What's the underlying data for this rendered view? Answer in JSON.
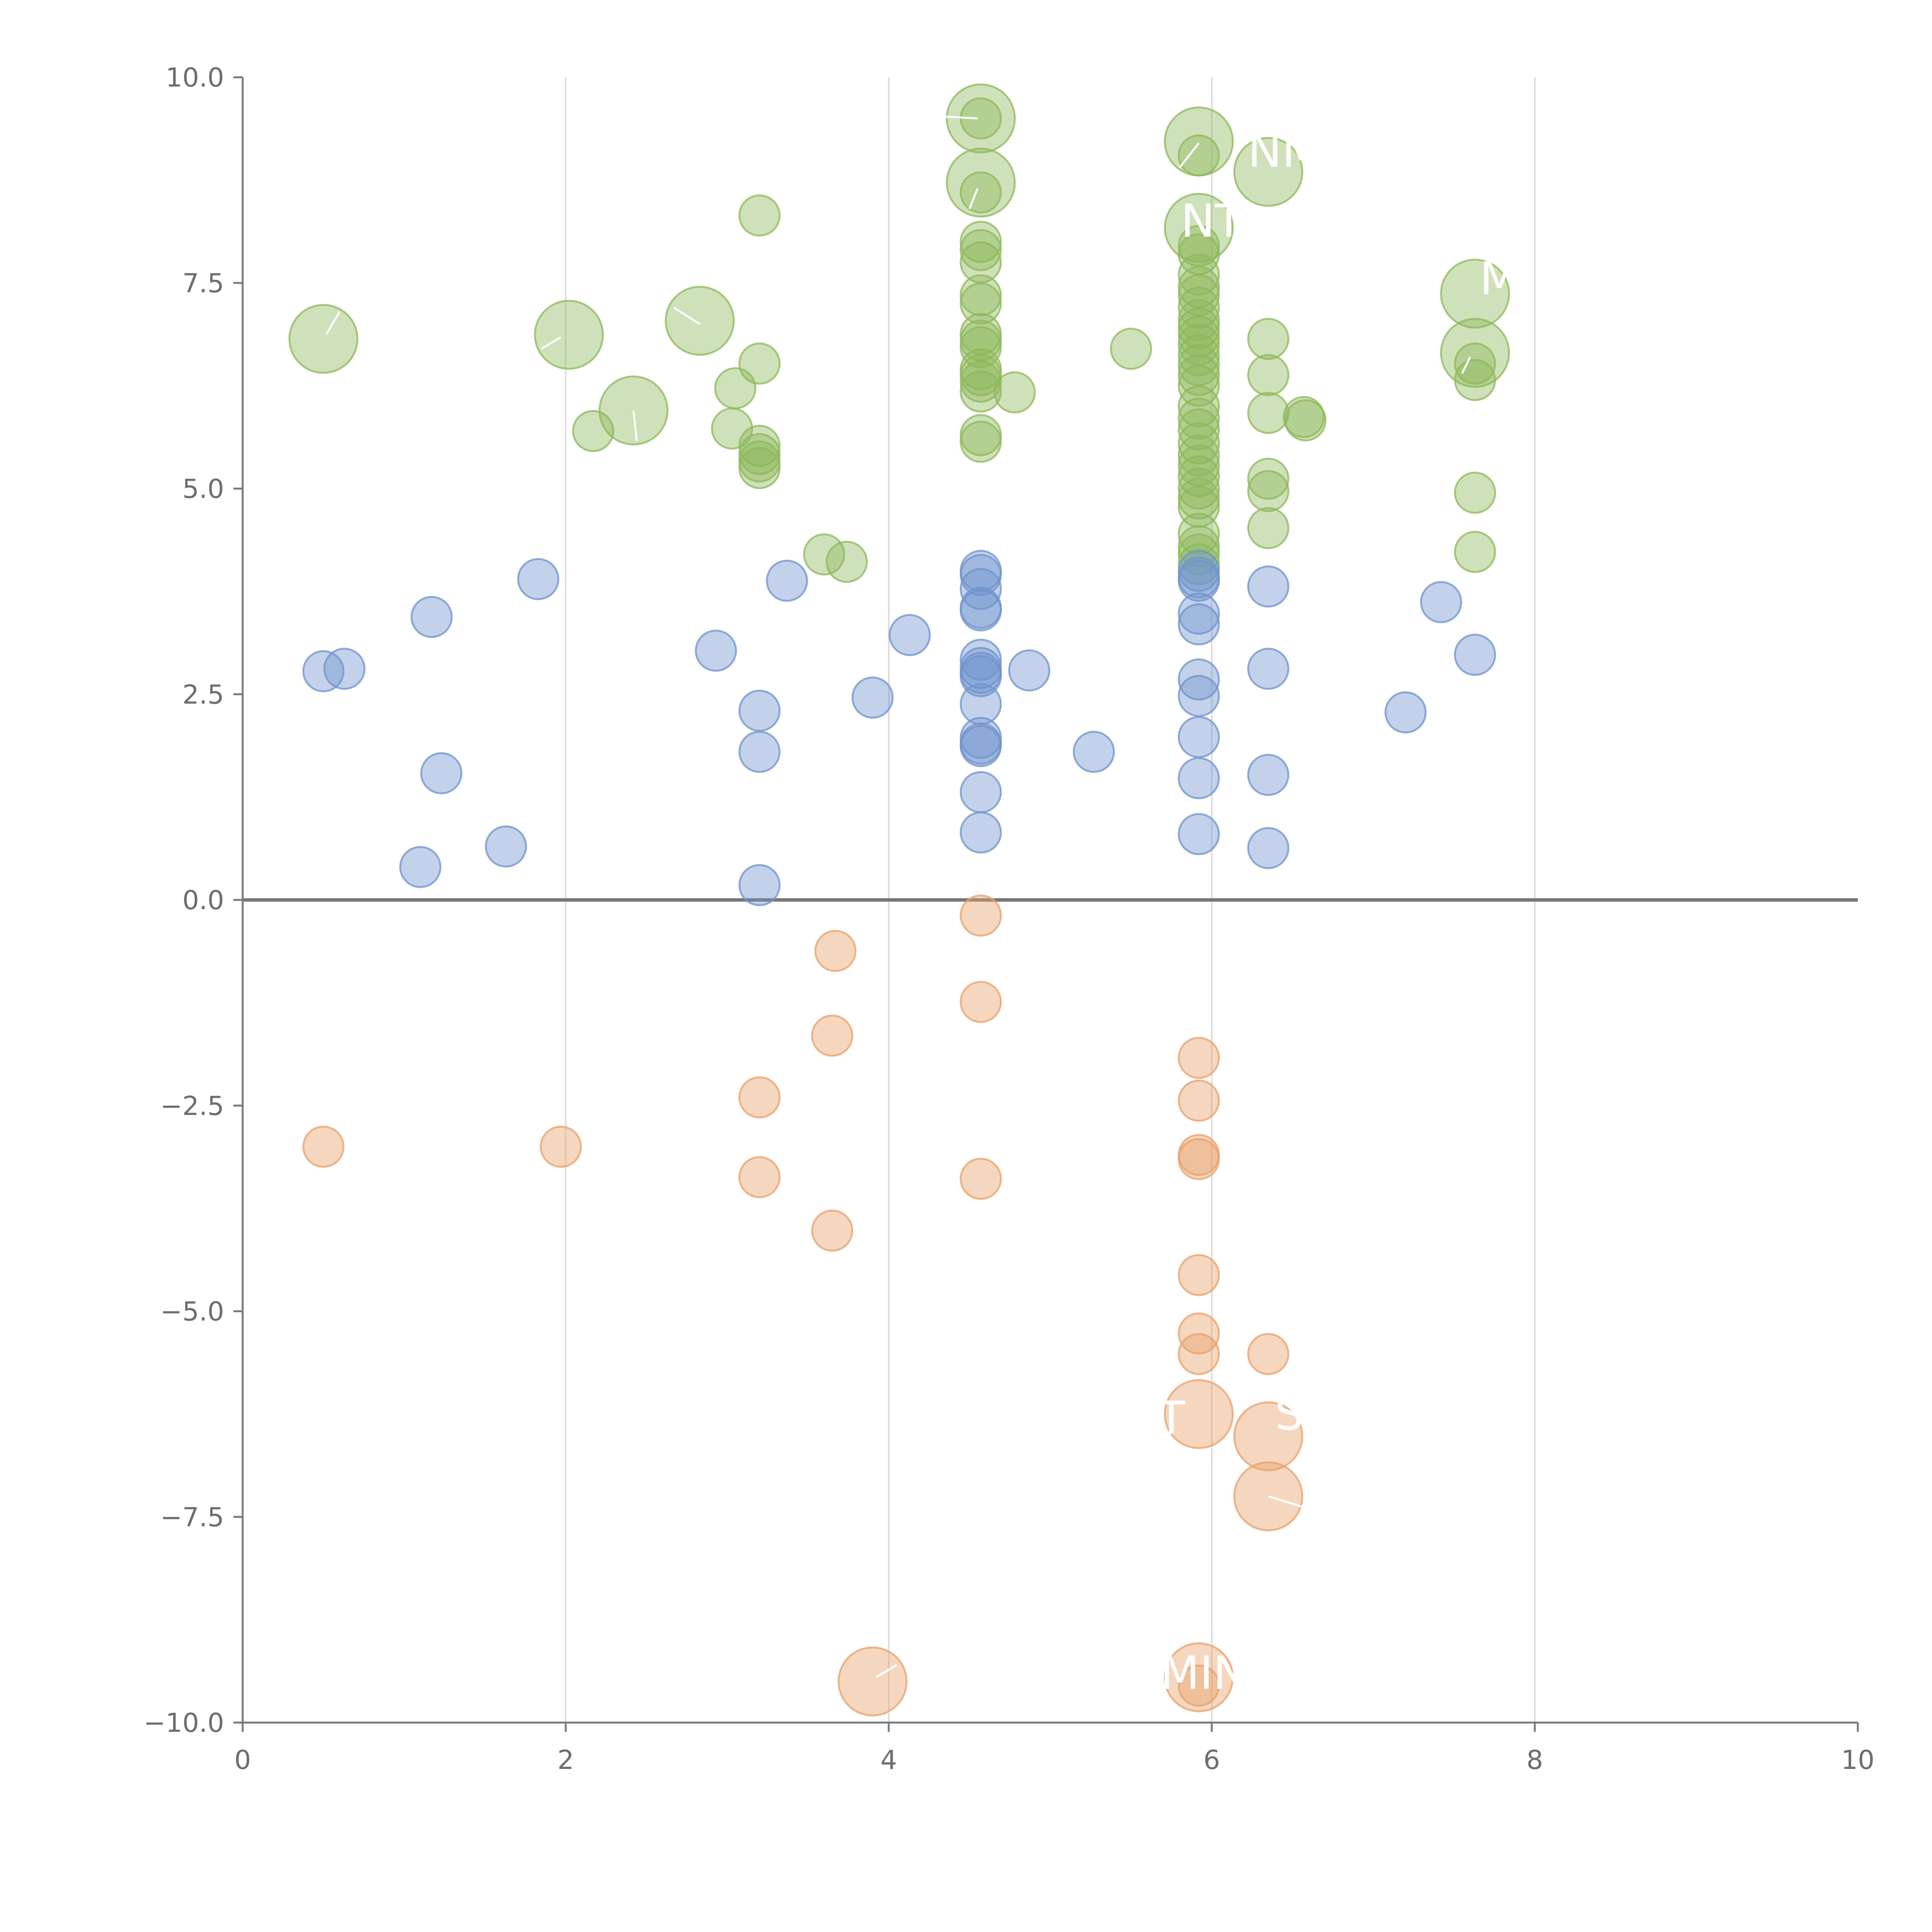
{
  "chart_data": {
    "type": "scatter",
    "title": "",
    "xlabel": "",
    "ylabel": "",
    "xlim": [
      0,
      10
    ],
    "ylim": [
      -10,
      10
    ],
    "x_ticks": [
      "0",
      "2",
      "4",
      "6",
      "8",
      "10"
    ],
    "y_ticks": [
      "−10.0",
      "−7.5",
      "−5.0",
      "−2.5",
      "0.0",
      "2.5",
      "5.0",
      "7.5",
      "10.0"
    ],
    "grid": "vertical",
    "zero_line": true,
    "legend": "none",
    "colors": {
      "green": "#8db85a",
      "blue": "#6f93cc",
      "orange": "#e8a06a"
    },
    "series": [
      {
        "color": "green",
        "points": [
          {
            "x": 0.5,
            "y": 6.82,
            "size": "large"
          },
          {
            "x": 2.02,
            "y": 6.87,
            "size": "large"
          },
          {
            "x": 2.83,
            "y": 7.04,
            "size": "large"
          },
          {
            "x": 2.42,
            "y": 5.95,
            "size": "large"
          },
          {
            "x": 4.57,
            "y": 9.5,
            "size": "large"
          },
          {
            "x": 4.57,
            "y": 8.72,
            "size": "large"
          },
          {
            "x": 5.92,
            "y": 9.22,
            "size": "large"
          },
          {
            "x": 6.35,
            "y": 8.85,
            "size": "large"
          },
          {
            "x": 5.92,
            "y": 8.17,
            "size": "large"
          },
          {
            "x": 7.63,
            "y": 7.37,
            "size": "large"
          },
          {
            "x": 7.63,
            "y": 6.65,
            "size": "large"
          },
          {
            "x": 3.2,
            "y": 8.32
          },
          {
            "x": 3.2,
            "y": 6.52
          },
          {
            "x": 3.05,
            "y": 6.22
          },
          {
            "x": 2.17,
            "y": 5.7
          },
          {
            "x": 3.03,
            "y": 5.73
          },
          {
            "x": 3.2,
            "y": 5.52
          },
          {
            "x": 3.2,
            "y": 5.42
          },
          {
            "x": 3.2,
            "y": 5.33
          },
          {
            "x": 3.2,
            "y": 5.25
          },
          {
            "x": 3.6,
            "y": 4.2
          },
          {
            "x": 3.74,
            "y": 4.11
          },
          {
            "x": 4.57,
            "y": 9.5
          },
          {
            "x": 4.57,
            "y": 8.6
          },
          {
            "x": 4.57,
            "y": 8.0
          },
          {
            "x": 4.57,
            "y": 7.9
          },
          {
            "x": 4.57,
            "y": 7.75
          },
          {
            "x": 4.57,
            "y": 7.35
          },
          {
            "x": 4.57,
            "y": 7.25
          },
          {
            "x": 4.57,
            "y": 6.88
          },
          {
            "x": 4.57,
            "y": 6.8
          },
          {
            "x": 4.57,
            "y": 6.72
          },
          {
            "x": 4.57,
            "y": 6.45
          },
          {
            "x": 4.57,
            "y": 6.38
          },
          {
            "x": 4.57,
            "y": 6.3
          },
          {
            "x": 4.57,
            "y": 6.18
          },
          {
            "x": 4.78,
            "y": 6.17
          },
          {
            "x": 4.57,
            "y": 5.65
          },
          {
            "x": 4.57,
            "y": 5.57
          },
          {
            "x": 5.5,
            "y": 6.7
          },
          {
            "x": 5.92,
            "y": 9.05
          },
          {
            "x": 5.92,
            "y": 7.95
          },
          {
            "x": 5.92,
            "y": 7.85
          },
          {
            "x": 5.92,
            "y": 7.6
          },
          {
            "x": 5.92,
            "y": 7.45
          },
          {
            "x": 5.92,
            "y": 7.35
          },
          {
            "x": 5.92,
            "y": 7.2
          },
          {
            "x": 5.92,
            "y": 7.05
          },
          {
            "x": 5.92,
            "y": 6.95
          },
          {
            "x": 5.92,
            "y": 6.85
          },
          {
            "x": 5.92,
            "y": 6.75
          },
          {
            "x": 5.92,
            "y": 6.62
          },
          {
            "x": 5.92,
            "y": 6.5
          },
          {
            "x": 5.92,
            "y": 6.38
          },
          {
            "x": 5.92,
            "y": 6.25
          },
          {
            "x": 5.92,
            "y": 6.0
          },
          {
            "x": 5.92,
            "y": 5.85
          },
          {
            "x": 5.92,
            "y": 5.72
          },
          {
            "x": 5.92,
            "y": 5.55
          },
          {
            "x": 5.92,
            "y": 5.4
          },
          {
            "x": 5.92,
            "y": 5.28
          },
          {
            "x": 5.92,
            "y": 5.15
          },
          {
            "x": 5.92,
            "y": 5.0
          },
          {
            "x": 5.92,
            "y": 4.88
          },
          {
            "x": 5.92,
            "y": 4.78
          },
          {
            "x": 5.92,
            "y": 4.45
          },
          {
            "x": 5.92,
            "y": 4.3
          },
          {
            "x": 5.92,
            "y": 4.2
          },
          {
            "x": 5.92,
            "y": 4.08
          },
          {
            "x": 6.35,
            "y": 6.82
          },
          {
            "x": 6.35,
            "y": 6.38
          },
          {
            "x": 6.35,
            "y": 5.92
          },
          {
            "x": 6.57,
            "y": 5.87
          },
          {
            "x": 6.58,
            "y": 5.83
          },
          {
            "x": 6.35,
            "y": 5.12
          },
          {
            "x": 6.35,
            "y": 4.97
          },
          {
            "x": 6.35,
            "y": 4.52
          },
          {
            "x": 7.63,
            "y": 6.52
          },
          {
            "x": 7.63,
            "y": 6.32
          },
          {
            "x": 7.63,
            "y": 4.95
          },
          {
            "x": 7.63,
            "y": 4.23
          }
        ]
      },
      {
        "color": "blue",
        "points": [
          {
            "x": 0.5,
            "y": 2.78
          },
          {
            "x": 0.63,
            "y": 2.81
          },
          {
            "x": 1.17,
            "y": 3.44
          },
          {
            "x": 1.83,
            "y": 3.9
          },
          {
            "x": 1.23,
            "y": 1.54
          },
          {
            "x": 1.1,
            "y": 0.4
          },
          {
            "x": 1.63,
            "y": 0.65
          },
          {
            "x": 2.93,
            "y": 3.03
          },
          {
            "x": 3.37,
            "y": 3.88
          },
          {
            "x": 3.2,
            "y": 2.3
          },
          {
            "x": 3.2,
            "y": 1.8
          },
          {
            "x": 3.2,
            "y": 0.18
          },
          {
            "x": 3.9,
            "y": 2.46
          },
          {
            "x": 4.13,
            "y": 3.22
          },
          {
            "x": 4.57,
            "y": 4.0
          },
          {
            "x": 4.57,
            "y": 3.95
          },
          {
            "x": 4.57,
            "y": 3.78
          },
          {
            "x": 4.57,
            "y": 3.55
          },
          {
            "x": 4.57,
            "y": 3.52
          },
          {
            "x": 4.57,
            "y": 2.92
          },
          {
            "x": 4.57,
            "y": 2.82
          },
          {
            "x": 4.57,
            "y": 2.76
          },
          {
            "x": 4.57,
            "y": 2.72
          },
          {
            "x": 4.57,
            "y": 2.38
          },
          {
            "x": 4.57,
            "y": 1.97
          },
          {
            "x": 4.57,
            "y": 1.9
          },
          {
            "x": 4.57,
            "y": 1.87
          },
          {
            "x": 4.57,
            "y": 1.31
          },
          {
            "x": 4.57,
            "y": 0.82
          },
          {
            "x": 4.87,
            "y": 2.79
          },
          {
            "x": 5.27,
            "y": 1.8
          },
          {
            "x": 5.92,
            "y": 4.0
          },
          {
            "x": 5.92,
            "y": 3.92
          },
          {
            "x": 5.92,
            "y": 3.88
          },
          {
            "x": 5.92,
            "y": 3.48
          },
          {
            "x": 5.92,
            "y": 3.35
          },
          {
            "x": 5.92,
            "y": 2.68
          },
          {
            "x": 5.92,
            "y": 2.48
          },
          {
            "x": 5.92,
            "y": 1.98
          },
          {
            "x": 5.92,
            "y": 1.48
          },
          {
            "x": 5.92,
            "y": 0.8
          },
          {
            "x": 6.35,
            "y": 3.81
          },
          {
            "x": 6.35,
            "y": 2.81
          },
          {
            "x": 6.35,
            "y": 1.52
          },
          {
            "x": 6.35,
            "y": 0.63
          },
          {
            "x": 7.2,
            "y": 2.28
          },
          {
            "x": 7.42,
            "y": 3.62
          },
          {
            "x": 7.63,
            "y": 2.98
          }
        ]
      },
      {
        "color": "orange",
        "points": [
          {
            "x": 0.5,
            "y": -3.0
          },
          {
            "x": 1.97,
            "y": -3.0
          },
          {
            "x": 3.2,
            "y": -2.4
          },
          {
            "x": 3.2,
            "y": -3.37
          },
          {
            "x": 3.67,
            "y": -0.62
          },
          {
            "x": 3.65,
            "y": -1.65
          },
          {
            "x": 3.65,
            "y": -4.02
          },
          {
            "x": 4.57,
            "y": -0.19
          },
          {
            "x": 4.57,
            "y": -1.24
          },
          {
            "x": 4.57,
            "y": -3.39
          },
          {
            "x": 5.92,
            "y": -1.92
          },
          {
            "x": 5.92,
            "y": -2.44
          },
          {
            "x": 5.92,
            "y": -3.1
          },
          {
            "x": 5.92,
            "y": -3.15
          },
          {
            "x": 5.92,
            "y": -4.56
          },
          {
            "x": 5.92,
            "y": -5.27
          },
          {
            "x": 5.92,
            "y": -5.52
          },
          {
            "x": 6.35,
            "y": -5.52
          },
          {
            "x": 5.92,
            "y": -6.25,
            "size": "large"
          },
          {
            "x": 6.35,
            "y": -6.52,
            "size": "large"
          },
          {
            "x": 6.35,
            "y": -7.25,
            "size": "large"
          },
          {
            "x": 3.9,
            "y": -9.5,
            "size": "large"
          },
          {
            "x": 5.92,
            "y": -9.45,
            "size": "large"
          },
          {
            "x": 5.92,
            "y": -9.55
          }
        ]
      }
    ],
    "annotations": [
      {
        "text": "NM",
        "x": 6.45,
        "y": 9.1
      },
      {
        "text": "NT",
        "x": 6.0,
        "y": 8.25
      },
      {
        "text": "M",
        "x": 7.78,
        "y": 7.55
      },
      {
        "text": "T",
        "x": 5.75,
        "y": -6.3
      },
      {
        "text": "S",
        "x": 6.48,
        "y": -6.25
      },
      {
        "text": "MIN",
        "x": 5.95,
        "y": -9.4
      }
    ],
    "leader_lines": [
      {
        "x1": 0.52,
        "y1": 6.88,
        "x2": 0.6,
        "y2": 7.15
      },
      {
        "x1": 1.97,
        "y1": 6.84,
        "x2": 1.85,
        "y2": 6.7
      },
      {
        "x1": 2.83,
        "y1": 7.0,
        "x2": 2.67,
        "y2": 7.2
      },
      {
        "x1": 2.42,
        "y1": 5.95,
        "x2": 2.44,
        "y2": 5.58
      },
      {
        "x1": 4.55,
        "y1": 9.5,
        "x2": 4.1,
        "y2": 9.55
      },
      {
        "x1": 4.55,
        "y1": 8.65,
        "x2": 4.5,
        "y2": 8.4
      },
      {
        "x1": 5.92,
        "y1": 9.2,
        "x2": 5.8,
        "y2": 8.9
      },
      {
        "x1": 7.6,
        "y1": 6.6,
        "x2": 7.55,
        "y2": 6.4
      },
      {
        "x1": 6.35,
        "y1": -7.25,
        "x2": 6.6,
        "y2": -7.4
      },
      {
        "x1": 3.92,
        "y1": -9.45,
        "x2": 4.05,
        "y2": -9.3
      }
    ]
  }
}
